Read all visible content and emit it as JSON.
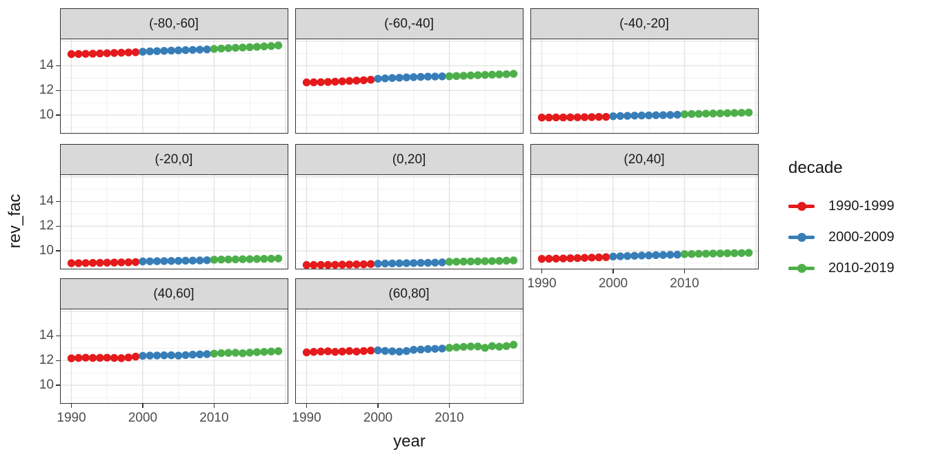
{
  "chart_data": {
    "type": "scatter",
    "title": "",
    "xlabel": "year",
    "ylabel": "rev_fac",
    "grid": true,
    "facet_layout": {
      "rows": 3,
      "cols": 3,
      "empty_last_cell": true
    },
    "legend": {
      "title": "decade",
      "position": "right",
      "entries": [
        {
          "label": "1990-1999",
          "color": "#E41A1C"
        },
        {
          "label": "2000-2009",
          "color": "#377EB8"
        },
        {
          "label": "2010-2019",
          "color": "#4DAF4A"
        }
      ]
    },
    "x": [
      1990,
      1991,
      1992,
      1993,
      1994,
      1995,
      1996,
      1997,
      1998,
      1999,
      2000,
      2001,
      2002,
      2003,
      2004,
      2005,
      2006,
      2007,
      2008,
      2009,
      2010,
      2011,
      2012,
      2013,
      2014,
      2015,
      2016,
      2017,
      2018,
      2019
    ],
    "x_axis": {
      "ticks": [
        1990,
        2000,
        2010
      ],
      "grid_major": [
        1990,
        2000,
        2010,
        2020
      ],
      "grid_minor": [
        1995,
        2005,
        2015
      ],
      "range": [
        1988.5,
        2020.3
      ]
    },
    "y_axis": {
      "ticks": [
        10,
        12,
        14
      ],
      "grid_major": [
        10,
        12,
        14,
        16
      ],
      "grid_minor": [
        9,
        11,
        13,
        15
      ],
      "range": [
        8.55,
        16.15
      ]
    },
    "facets": [
      {
        "label": "(-80,-60]",
        "values": [
          14.95,
          14.96,
          14.97,
          14.98,
          15.0,
          15.02,
          15.04,
          15.06,
          15.08,
          15.1,
          15.14,
          15.17,
          15.19,
          15.21,
          15.23,
          15.25,
          15.27,
          15.29,
          15.31,
          15.33,
          15.37,
          15.4,
          15.43,
          15.46,
          15.48,
          15.51,
          15.54,
          15.57,
          15.6,
          15.65
        ]
      },
      {
        "label": "(-60,-40]",
        "values": [
          12.65,
          12.66,
          12.67,
          12.69,
          12.71,
          12.74,
          12.77,
          12.8,
          12.83,
          12.87,
          12.95,
          12.98,
          13.01,
          13.03,
          13.06,
          13.08,
          13.1,
          13.12,
          13.13,
          13.14,
          13.15,
          13.17,
          13.19,
          13.22,
          13.24,
          13.26,
          13.28,
          13.3,
          13.32,
          13.35
        ]
      },
      {
        "label": "(-40,-20]",
        "values": [
          9.8,
          9.8,
          9.81,
          9.81,
          9.82,
          9.82,
          9.83,
          9.84,
          9.85,
          9.86,
          9.91,
          9.93,
          9.94,
          9.96,
          9.97,
          9.98,
          9.99,
          10.0,
          10.01,
          10.03,
          10.07,
          10.09,
          10.1,
          10.12,
          10.13,
          10.14,
          10.16,
          10.17,
          10.19,
          10.21
        ]
      },
      {
        "label": "(-20,0]",
        "values": [
          9.0,
          9.0,
          9.01,
          9.02,
          9.03,
          9.04,
          9.05,
          9.06,
          9.07,
          9.09,
          9.14,
          9.15,
          9.16,
          9.17,
          9.18,
          9.19,
          9.2,
          9.21,
          9.22,
          9.24,
          9.28,
          9.29,
          9.3,
          9.31,
          9.32,
          9.33,
          9.34,
          9.35,
          9.36,
          9.38
        ]
      },
      {
        "label": "(0,20]",
        "values": [
          8.85,
          8.85,
          8.86,
          8.86,
          8.87,
          8.88,
          8.89,
          8.9,
          8.91,
          8.93,
          8.96,
          8.97,
          8.98,
          8.99,
          9.0,
          9.01,
          9.02,
          9.03,
          9.04,
          9.06,
          9.11,
          9.12,
          9.13,
          9.14,
          9.15,
          9.16,
          9.17,
          9.18,
          9.2,
          9.22
        ]
      },
      {
        "label": "(20,40]",
        "values": [
          9.35,
          9.36,
          9.37,
          9.38,
          9.4,
          9.41,
          9.43,
          9.45,
          9.47,
          9.49,
          9.54,
          9.56,
          9.58,
          9.6,
          9.62,
          9.63,
          9.65,
          9.66,
          9.68,
          9.69,
          9.73,
          9.74,
          9.76,
          9.77,
          9.78,
          9.79,
          9.8,
          9.81,
          9.82,
          9.84
        ]
      },
      {
        "label": "(40,60]",
        "values": [
          12.18,
          12.21,
          12.23,
          12.21,
          12.22,
          12.23,
          12.21,
          12.19,
          12.25,
          12.32,
          12.38,
          12.4,
          12.41,
          12.42,
          12.43,
          12.4,
          12.44,
          12.48,
          12.5,
          12.52,
          12.56,
          12.6,
          12.62,
          12.63,
          12.59,
          12.64,
          12.68,
          12.7,
          12.73,
          12.76
        ]
      },
      {
        "label": "(60,80]",
        "values": [
          12.66,
          12.7,
          12.73,
          12.75,
          12.7,
          12.73,
          12.77,
          12.73,
          12.77,
          12.81,
          12.83,
          12.78,
          12.75,
          12.72,
          12.77,
          12.87,
          12.89,
          12.93,
          12.95,
          12.97,
          13.03,
          13.07,
          13.11,
          13.14,
          13.14,
          13.03,
          13.17,
          13.12,
          13.17,
          13.28
        ]
      }
    ],
    "colors": {
      "strip_bg": "#d9d9d9",
      "panel_border": "#333333",
      "grid_major": "#e3e3e3",
      "grid_minor": "#efefef",
      "tick_text": "#4d4d4d",
      "text": "#191919"
    }
  }
}
